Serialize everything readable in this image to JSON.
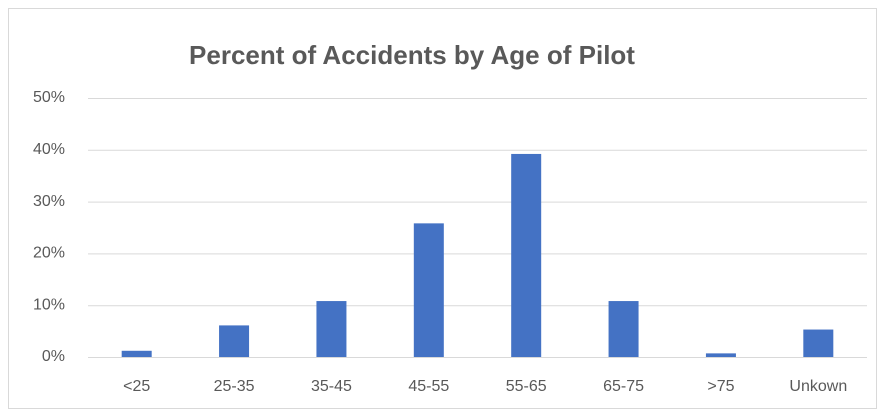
{
  "chart_data": {
    "type": "bar",
    "title": "Percent of Accidents by Age of Pilot",
    "categories": [
      "<25",
      "25-35",
      "35-45",
      "45-55",
      "55-65",
      "65-75",
      ">75",
      "Unkown"
    ],
    "values": [
      1.2,
      6.1,
      10.8,
      25.8,
      39.2,
      10.8,
      0.7,
      5.3
    ],
    "color": "#4472c4",
    "ylim": [
      0,
      50
    ],
    "yticks": [
      {
        "value": 0,
        "label": "0%"
      },
      {
        "value": 10,
        "label": "10%"
      },
      {
        "value": 20,
        "label": "20%"
      },
      {
        "value": 30,
        "label": "30%"
      },
      {
        "value": 40,
        "label": "40%"
      },
      {
        "value": 50,
        "label": "50%"
      }
    ],
    "grid": true
  }
}
